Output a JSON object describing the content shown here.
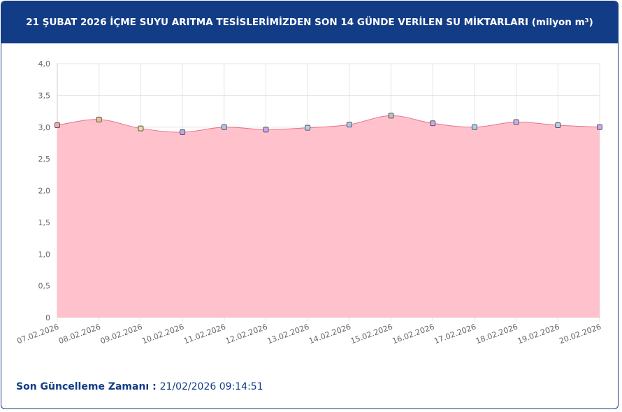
{
  "chart_data": {
    "type": "area",
    "title": "21 ŞUBAT 2026 İÇME SUYU ARITMA TESİSLERİMİZDEN SON 14 GÜNDE VERİLEN SU MİKTARLARI (milyon m³)",
    "categories": [
      "07.02.2026",
      "08.02.2026",
      "09.02.2026",
      "10.02.2026",
      "11.02.2026",
      "12.02.2026",
      "13.02.2026",
      "14.02.2026",
      "15.02.2026",
      "16.02.2026",
      "17.02.2026",
      "18.02.2026",
      "19.02.2026",
      "20.02.2026"
    ],
    "values": [
      3.03,
      3.12,
      2.98,
      2.92,
      3.0,
      2.96,
      2.99,
      3.04,
      3.18,
      3.06,
      3.0,
      3.08,
      3.03,
      3.0
    ],
    "line_color": "#e8708a",
    "fill_color": "#ffc2cd",
    "marker_colors": [
      "#f4a6b8",
      "#f0c090",
      "#e8e09a",
      "#b8a8e8",
      "#a8c8f0",
      "#c8a8f0",
      "#b8d0e8",
      "#a8c8f0",
      "#c0c0c0",
      "#c8a8e8",
      "#a8d0f0",
      "#c0b0f0",
      "#b8d0e8",
      "#c8a8f0"
    ],
    "ylim": [
      0,
      4.0
    ],
    "yticks": [
      0,
      {
        "value": 0.5,
        "label": "0,5"
      },
      {
        "value": 1.0,
        "label": "1,0"
      },
      {
        "value": 1.5,
        "label": "1,5"
      },
      {
        "value": 2.0,
        "label": "2,0"
      },
      {
        "value": 2.5,
        "label": "2,5"
      },
      {
        "value": 3.0,
        "label": "3,0"
      },
      {
        "value": 3.5,
        "label": "3,5"
      },
      {
        "value": 4.0,
        "label": "4,0"
      }
    ],
    "grid": true
  },
  "footer": {
    "label": "Son Güncelleme Zamanı",
    "value": "21/02/2026 09:14:51"
  }
}
